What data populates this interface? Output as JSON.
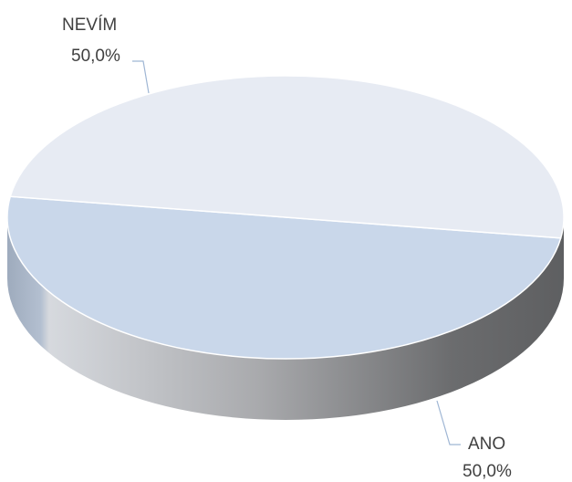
{
  "chart_data": {
    "type": "pie",
    "style": "3d",
    "slices": [
      {
        "label": "NEVÍM",
        "value": 50.0,
        "value_label": "50,0%",
        "color": "#c9d7ea"
      },
      {
        "label": "ANO",
        "value": 50.0,
        "value_label": "50,0%",
        "color": "#e7ebf3"
      }
    ],
    "legend": "none"
  }
}
